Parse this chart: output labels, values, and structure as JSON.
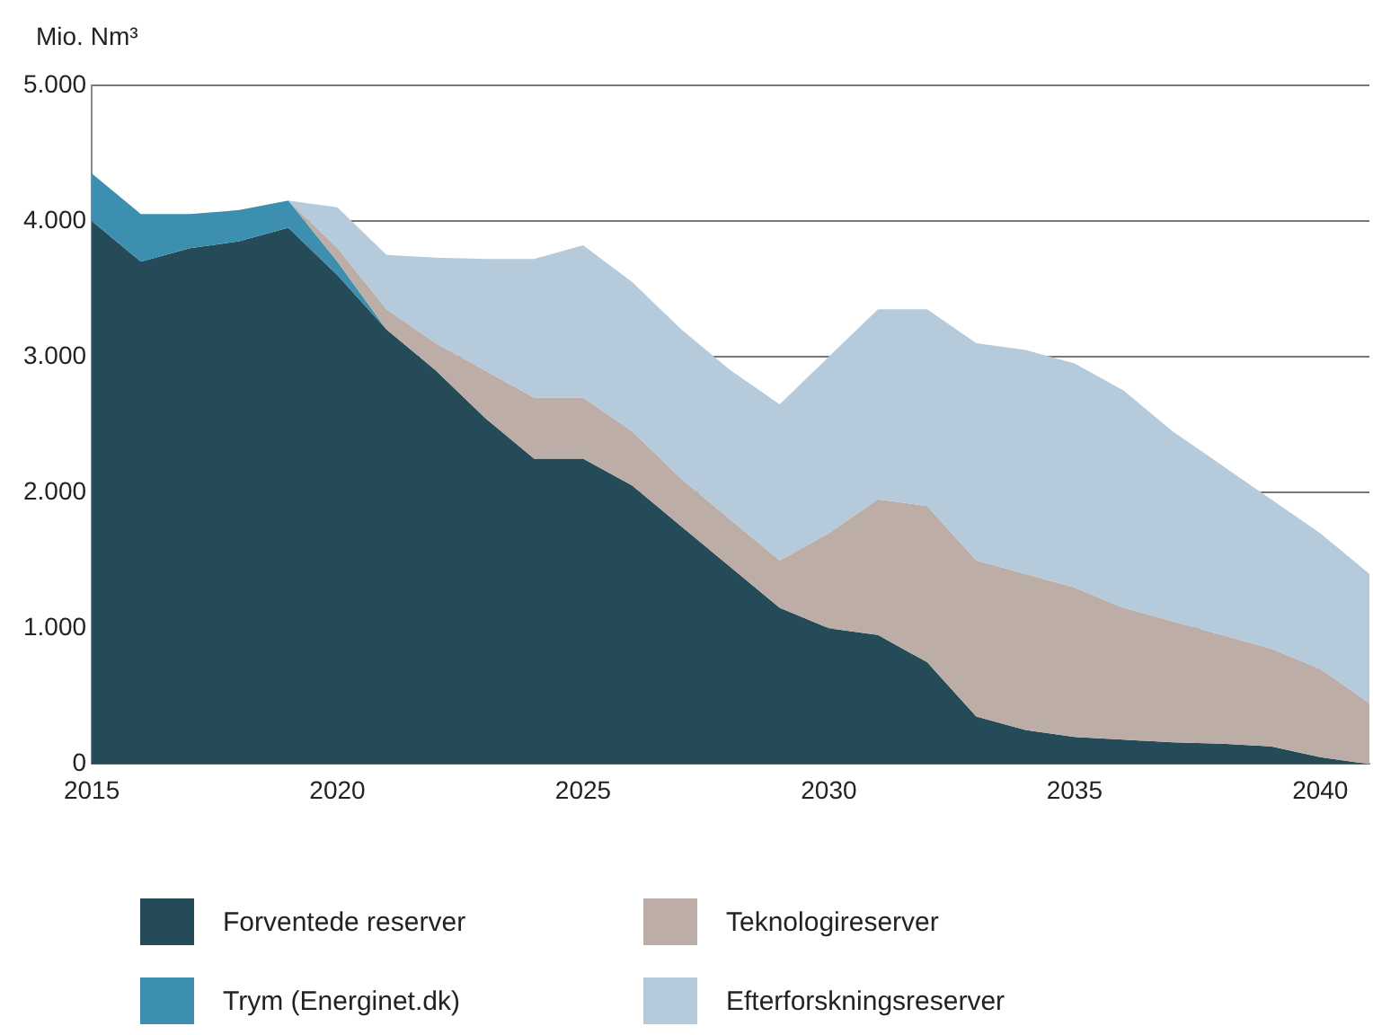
{
  "chart_data": {
    "type": "area",
    "stacked": true,
    "ylabel": "Mio. Nm³",
    "x": [
      2015,
      2016,
      2017,
      2018,
      2019,
      2020,
      2021,
      2022,
      2023,
      2024,
      2025,
      2026,
      2027,
      2028,
      2029,
      2030,
      2031,
      2032,
      2033,
      2034,
      2035,
      2036,
      2037,
      2038,
      2039,
      2040,
      2041
    ],
    "series": [
      {
        "name": "Forventede reserver",
        "color": "#264b58",
        "values": [
          4000,
          3700,
          3800,
          3850,
          3950,
          3600,
          3200,
          2900,
          2550,
          2250,
          2250,
          2050,
          1750,
          1450,
          1150,
          1000,
          950,
          750,
          350,
          250,
          200,
          180,
          160,
          150,
          130,
          50,
          0
        ]
      },
      {
        "name": "Trym (Energinet.dk)",
        "color": "#3d8fb0",
        "values": [
          350,
          350,
          250,
          230,
          200,
          100,
          0,
          null,
          null,
          null,
          null,
          null,
          null,
          null,
          null,
          null,
          null,
          null,
          null,
          null,
          null,
          null,
          null,
          null,
          null,
          null,
          null
        ]
      },
      {
        "name": "Teknologireserver",
        "color": "#bcaea6",
        "values": [
          null,
          null,
          null,
          null,
          0,
          100,
          150,
          200,
          350,
          450,
          450,
          400,
          350,
          350,
          350,
          700,
          1000,
          1150,
          1150,
          1150,
          1100,
          970,
          890,
          800,
          720,
          650,
          450
        ]
      },
      {
        "name": "Efterforskningsreserver",
        "color": "#b5cadb",
        "values": [
          null,
          null,
          null,
          null,
          0,
          300,
          400,
          630,
          820,
          1020,
          1120,
          1100,
          1100,
          1100,
          1150,
          1300,
          1400,
          1450,
          1600,
          1650,
          1650,
          1600,
          1400,
          1250,
          1100,
          1000,
          950
        ]
      }
    ],
    "xlim": [
      2015,
      2041
    ],
    "xticks": [
      2015,
      2020,
      2025,
      2030,
      2035,
      2040
    ],
    "ylim": [
      0,
      5000
    ],
    "yticks": [
      {
        "value": 0,
        "label": "0"
      },
      {
        "value": 1000,
        "label": "1.000"
      },
      {
        "value": 2000,
        "label": "2.000"
      },
      {
        "value": 3000,
        "label": "3.000"
      },
      {
        "value": 4000,
        "label": "4.000"
      },
      {
        "value": 5000,
        "label": "5.000"
      }
    ],
    "grid": "y",
    "legend": "bottom"
  }
}
